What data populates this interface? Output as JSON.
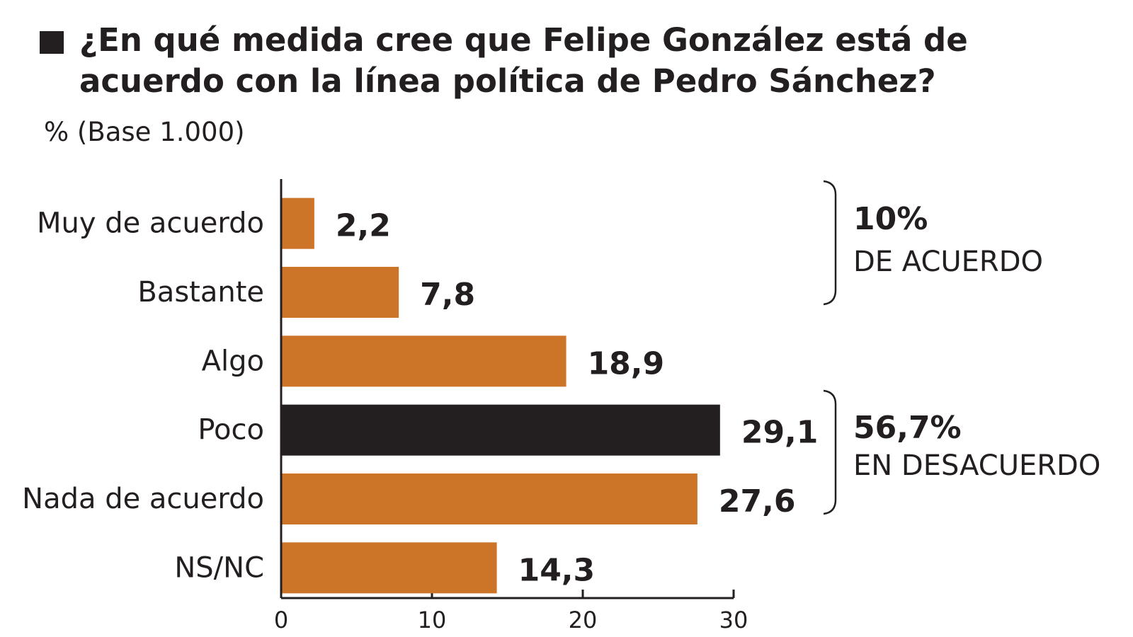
{
  "chart_data": {
    "type": "bar",
    "orientation": "horizontal",
    "title": "¿En qué medida cree que Felipe González está de acuerdo con la línea política de Pedro Sánchez?",
    "subtitle": "% (Base 1.000)",
    "categories": [
      "Muy de acuerdo",
      "Bastante",
      "Algo",
      "Poco",
      "Nada de acuerdo",
      "NS/NC"
    ],
    "values": [
      2.2,
      7.8,
      18.9,
      29.1,
      27.6,
      14.3
    ],
    "value_labels": [
      "2,2",
      "7,8",
      "18,9",
      "29,1",
      "27,6",
      "14,3"
    ],
    "colors": [
      "#cc7428",
      "#cc7428",
      "#cc7428",
      "#231f20",
      "#cc7428",
      "#cc7428"
    ],
    "xlim": [
      0,
      30
    ],
    "xticks": [
      0,
      10,
      20,
      30
    ],
    "annotations": [
      "10%",
      "DE ACUERDO",
      "56,7%",
      "EN DESACUERDO"
    ]
  }
}
